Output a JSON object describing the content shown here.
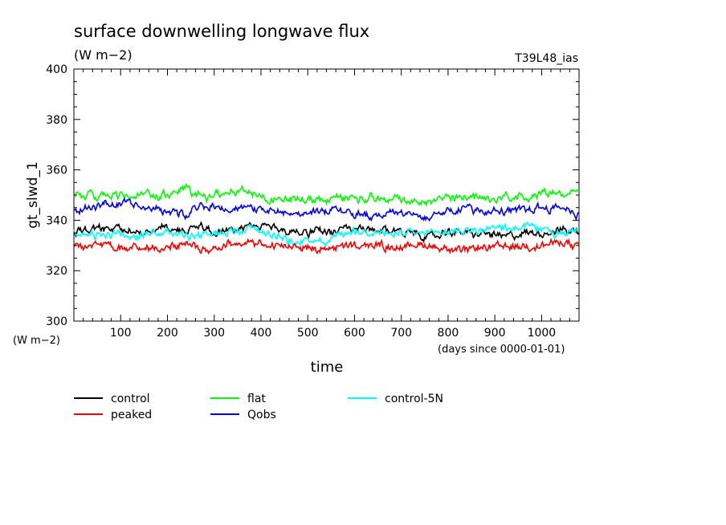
{
  "chart_data": {
    "type": "line",
    "title": "surface downwelling longwave flux",
    "subtitle": "(W m−2)",
    "run_label": "T39L48_ias",
    "xlabel": "time",
    "x_units": "(days since 0000-01-01)",
    "ylabel": "gt_slwd_1",
    "y_units": "(W m−2)",
    "xlim": [
      0,
      1080
    ],
    "ylim": [
      300,
      400
    ],
    "x_ticks": [
      100,
      200,
      300,
      400,
      500,
      600,
      700,
      800,
      900,
      1000
    ],
    "y_ticks": [
      300,
      320,
      340,
      360,
      380,
      400
    ],
    "grid": false,
    "legend_position": "bottom",
    "series": [
      {
        "name": "control",
        "color": "#000000",
        "x": [
          0,
          60,
          120,
          180,
          240,
          270,
          300,
          360,
          420,
          480,
          540,
          600,
          660,
          720,
          760,
          800,
          860,
          920,
          980,
          1040,
          1080
        ],
        "values": [
          335,
          337,
          336,
          337,
          336,
          339,
          336,
          336,
          337,
          336,
          335,
          336,
          336,
          336,
          333,
          335,
          335,
          334,
          334,
          336,
          336
        ]
      },
      {
        "name": "peaked",
        "color": "#ff0000",
        "x": [
          0,
          60,
          120,
          180,
          240,
          270,
          300,
          360,
          420,
          480,
          540,
          600,
          660,
          720,
          760,
          800,
          860,
          920,
          980,
          1040,
          1080
        ],
        "values": [
          330,
          329,
          329,
          330,
          330,
          328,
          329,
          331,
          330,
          329,
          329,
          330,
          330,
          330,
          330,
          329,
          328,
          330,
          330,
          331,
          329
        ]
      },
      {
        "name": "flat",
        "color": "#00ff00",
        "x": [
          0,
          60,
          120,
          180,
          240,
          270,
          300,
          360,
          420,
          480,
          540,
          600,
          660,
          720,
          760,
          800,
          860,
          920,
          980,
          1040,
          1080
        ],
        "values": [
          351,
          349,
          350,
          349,
          351,
          350,
          350,
          352,
          349,
          349,
          348,
          349,
          349,
          348,
          348,
          350,
          349,
          348,
          350,
          351,
          351
        ]
      },
      {
        "name": "Qobs",
        "color": "#0000ff",
        "x": [
          0,
          60,
          120,
          180,
          240,
          270,
          300,
          360,
          420,
          480,
          540,
          600,
          660,
          720,
          760,
          800,
          860,
          920,
          980,
          1040,
          1080
        ],
        "values": [
          344,
          346,
          346,
          344,
          342,
          345,
          344,
          345,
          344,
          342,
          344,
          343,
          343,
          343,
          342,
          345,
          345,
          343,
          345,
          346,
          343
        ]
      },
      {
        "name": "control-5N",
        "color": "#00ffff",
        "x": [
          0,
          60,
          120,
          180,
          240,
          270,
          300,
          360,
          420,
          480,
          540,
          600,
          660,
          720,
          760,
          800,
          860,
          920,
          980,
          1040,
          1080
        ],
        "values": [
          335,
          334,
          334,
          335,
          334,
          334,
          335,
          337,
          335,
          332,
          332,
          336,
          335,
          334,
          334,
          336,
          336,
          337,
          337,
          334,
          336
        ]
      }
    ]
  }
}
